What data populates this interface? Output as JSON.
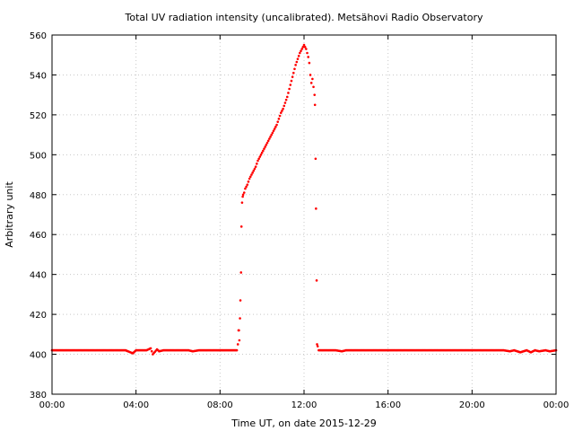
{
  "chart_data": {
    "type": "scatter",
    "title": "Total UV radiation intensity (uncalibrated). Metsähovi Radio Observatory",
    "xlabel": "Time UT, on date 2015-12-29",
    "ylabel": "Arbitrary unit",
    "xlim": [
      0,
      24
    ],
    "ylim": [
      380,
      560
    ],
    "x_unit": "hours UT",
    "xticks": [
      0,
      4,
      8,
      12,
      16,
      20,
      24
    ],
    "xtick_labels": [
      "00:00",
      "04:00",
      "08:00",
      "12:00",
      "16:00",
      "20:00",
      "00:00"
    ],
    "yticks": [
      380,
      400,
      420,
      440,
      460,
      480,
      500,
      520,
      540,
      560
    ],
    "ytick_labels": [
      "380",
      "400",
      "420",
      "440",
      "460",
      "480",
      "500",
      "520",
      "540",
      "560"
    ],
    "grid": true,
    "legend": "none",
    "marker_color": "#ff0000",
    "series": [
      {
        "points": [
          [
            0.0,
            402
          ],
          [
            0.5,
            402
          ],
          [
            1.0,
            402
          ],
          [
            1.5,
            402
          ],
          [
            2.0,
            402
          ],
          [
            2.5,
            402
          ],
          [
            3.0,
            402
          ],
          [
            3.5,
            402
          ],
          [
            3.85,
            400.5
          ],
          [
            4.0,
            402
          ],
          [
            4.2,
            402
          ],
          [
            4.5,
            402
          ],
          [
            4.7,
            403
          ],
          [
            4.8,
            400
          ],
          [
            5.0,
            402.5
          ],
          [
            5.1,
            401.5
          ],
          [
            5.3,
            402
          ],
          [
            5.5,
            402
          ],
          [
            6.0,
            402
          ],
          [
            6.5,
            402
          ],
          [
            6.7,
            401.5
          ],
          [
            7.0,
            402
          ],
          [
            7.5,
            402
          ],
          [
            8.0,
            402
          ],
          [
            8.5,
            402
          ],
          [
            8.8,
            402
          ],
          [
            8.85,
            405
          ],
          [
            8.88,
            412
          ],
          [
            8.9,
            412
          ],
          [
            8.92,
            407
          ],
          [
            8.95,
            418
          ],
          [
            8.97,
            427
          ],
          [
            9.0,
            441
          ],
          [
            9.02,
            464
          ],
          [
            9.05,
            476
          ],
          [
            9.08,
            479
          ],
          [
            9.1,
            480
          ],
          [
            9.15,
            481
          ],
          [
            9.2,
            483
          ],
          [
            9.3,
            485
          ],
          [
            9.4,
            488
          ],
          [
            9.5,
            490
          ],
          [
            9.6,
            492
          ],
          [
            9.7,
            494
          ],
          [
            9.8,
            497
          ],
          [
            9.9,
            499
          ],
          [
            10.0,
            501
          ],
          [
            10.1,
            503
          ],
          [
            10.2,
            505
          ],
          [
            10.3,
            507
          ],
          [
            10.4,
            509
          ],
          [
            10.5,
            511
          ],
          [
            10.6,
            513
          ],
          [
            10.7,
            515
          ],
          [
            10.8,
            518
          ],
          [
            10.9,
            521
          ],
          [
            11.0,
            523
          ],
          [
            11.1,
            526
          ],
          [
            11.2,
            529
          ],
          [
            11.3,
            533
          ],
          [
            11.4,
            537
          ],
          [
            11.5,
            541
          ],
          [
            11.6,
            545
          ],
          [
            11.7,
            548
          ],
          [
            11.8,
            551
          ],
          [
            11.9,
            553
          ],
          [
            12.0,
            555
          ],
          [
            12.05,
            554
          ],
          [
            12.1,
            553
          ],
          [
            12.15,
            551
          ],
          [
            12.2,
            549
          ],
          [
            12.25,
            546
          ],
          [
            12.3,
            540
          ],
          [
            12.35,
            536
          ],
          [
            12.4,
            538
          ],
          [
            12.45,
            534
          ],
          [
            12.5,
            530
          ],
          [
            12.52,
            525
          ],
          [
            12.55,
            498
          ],
          [
            12.57,
            473
          ],
          [
            12.6,
            437
          ],
          [
            12.62,
            405
          ],
          [
            12.65,
            404
          ],
          [
            12.7,
            402
          ],
          [
            13.0,
            402
          ],
          [
            13.5,
            402
          ],
          [
            13.8,
            401.5
          ],
          [
            14.0,
            402
          ],
          [
            14.5,
            402
          ],
          [
            15.0,
            402
          ],
          [
            15.5,
            402
          ],
          [
            16.0,
            402
          ],
          [
            16.5,
            402
          ],
          [
            17.0,
            402
          ],
          [
            17.5,
            402
          ],
          [
            18.0,
            402
          ],
          [
            18.5,
            402
          ],
          [
            19.0,
            402
          ],
          [
            19.5,
            402
          ],
          [
            20.0,
            402
          ],
          [
            20.5,
            402
          ],
          [
            21.0,
            402
          ],
          [
            21.5,
            402
          ],
          [
            21.8,
            401.5
          ],
          [
            22.0,
            402
          ],
          [
            22.3,
            401
          ],
          [
            22.6,
            402
          ],
          [
            22.8,
            401
          ],
          [
            23.0,
            402
          ],
          [
            23.2,
            401.5
          ],
          [
            23.5,
            402
          ],
          [
            23.7,
            401.5
          ],
          [
            24.0,
            402
          ]
        ]
      }
    ]
  }
}
